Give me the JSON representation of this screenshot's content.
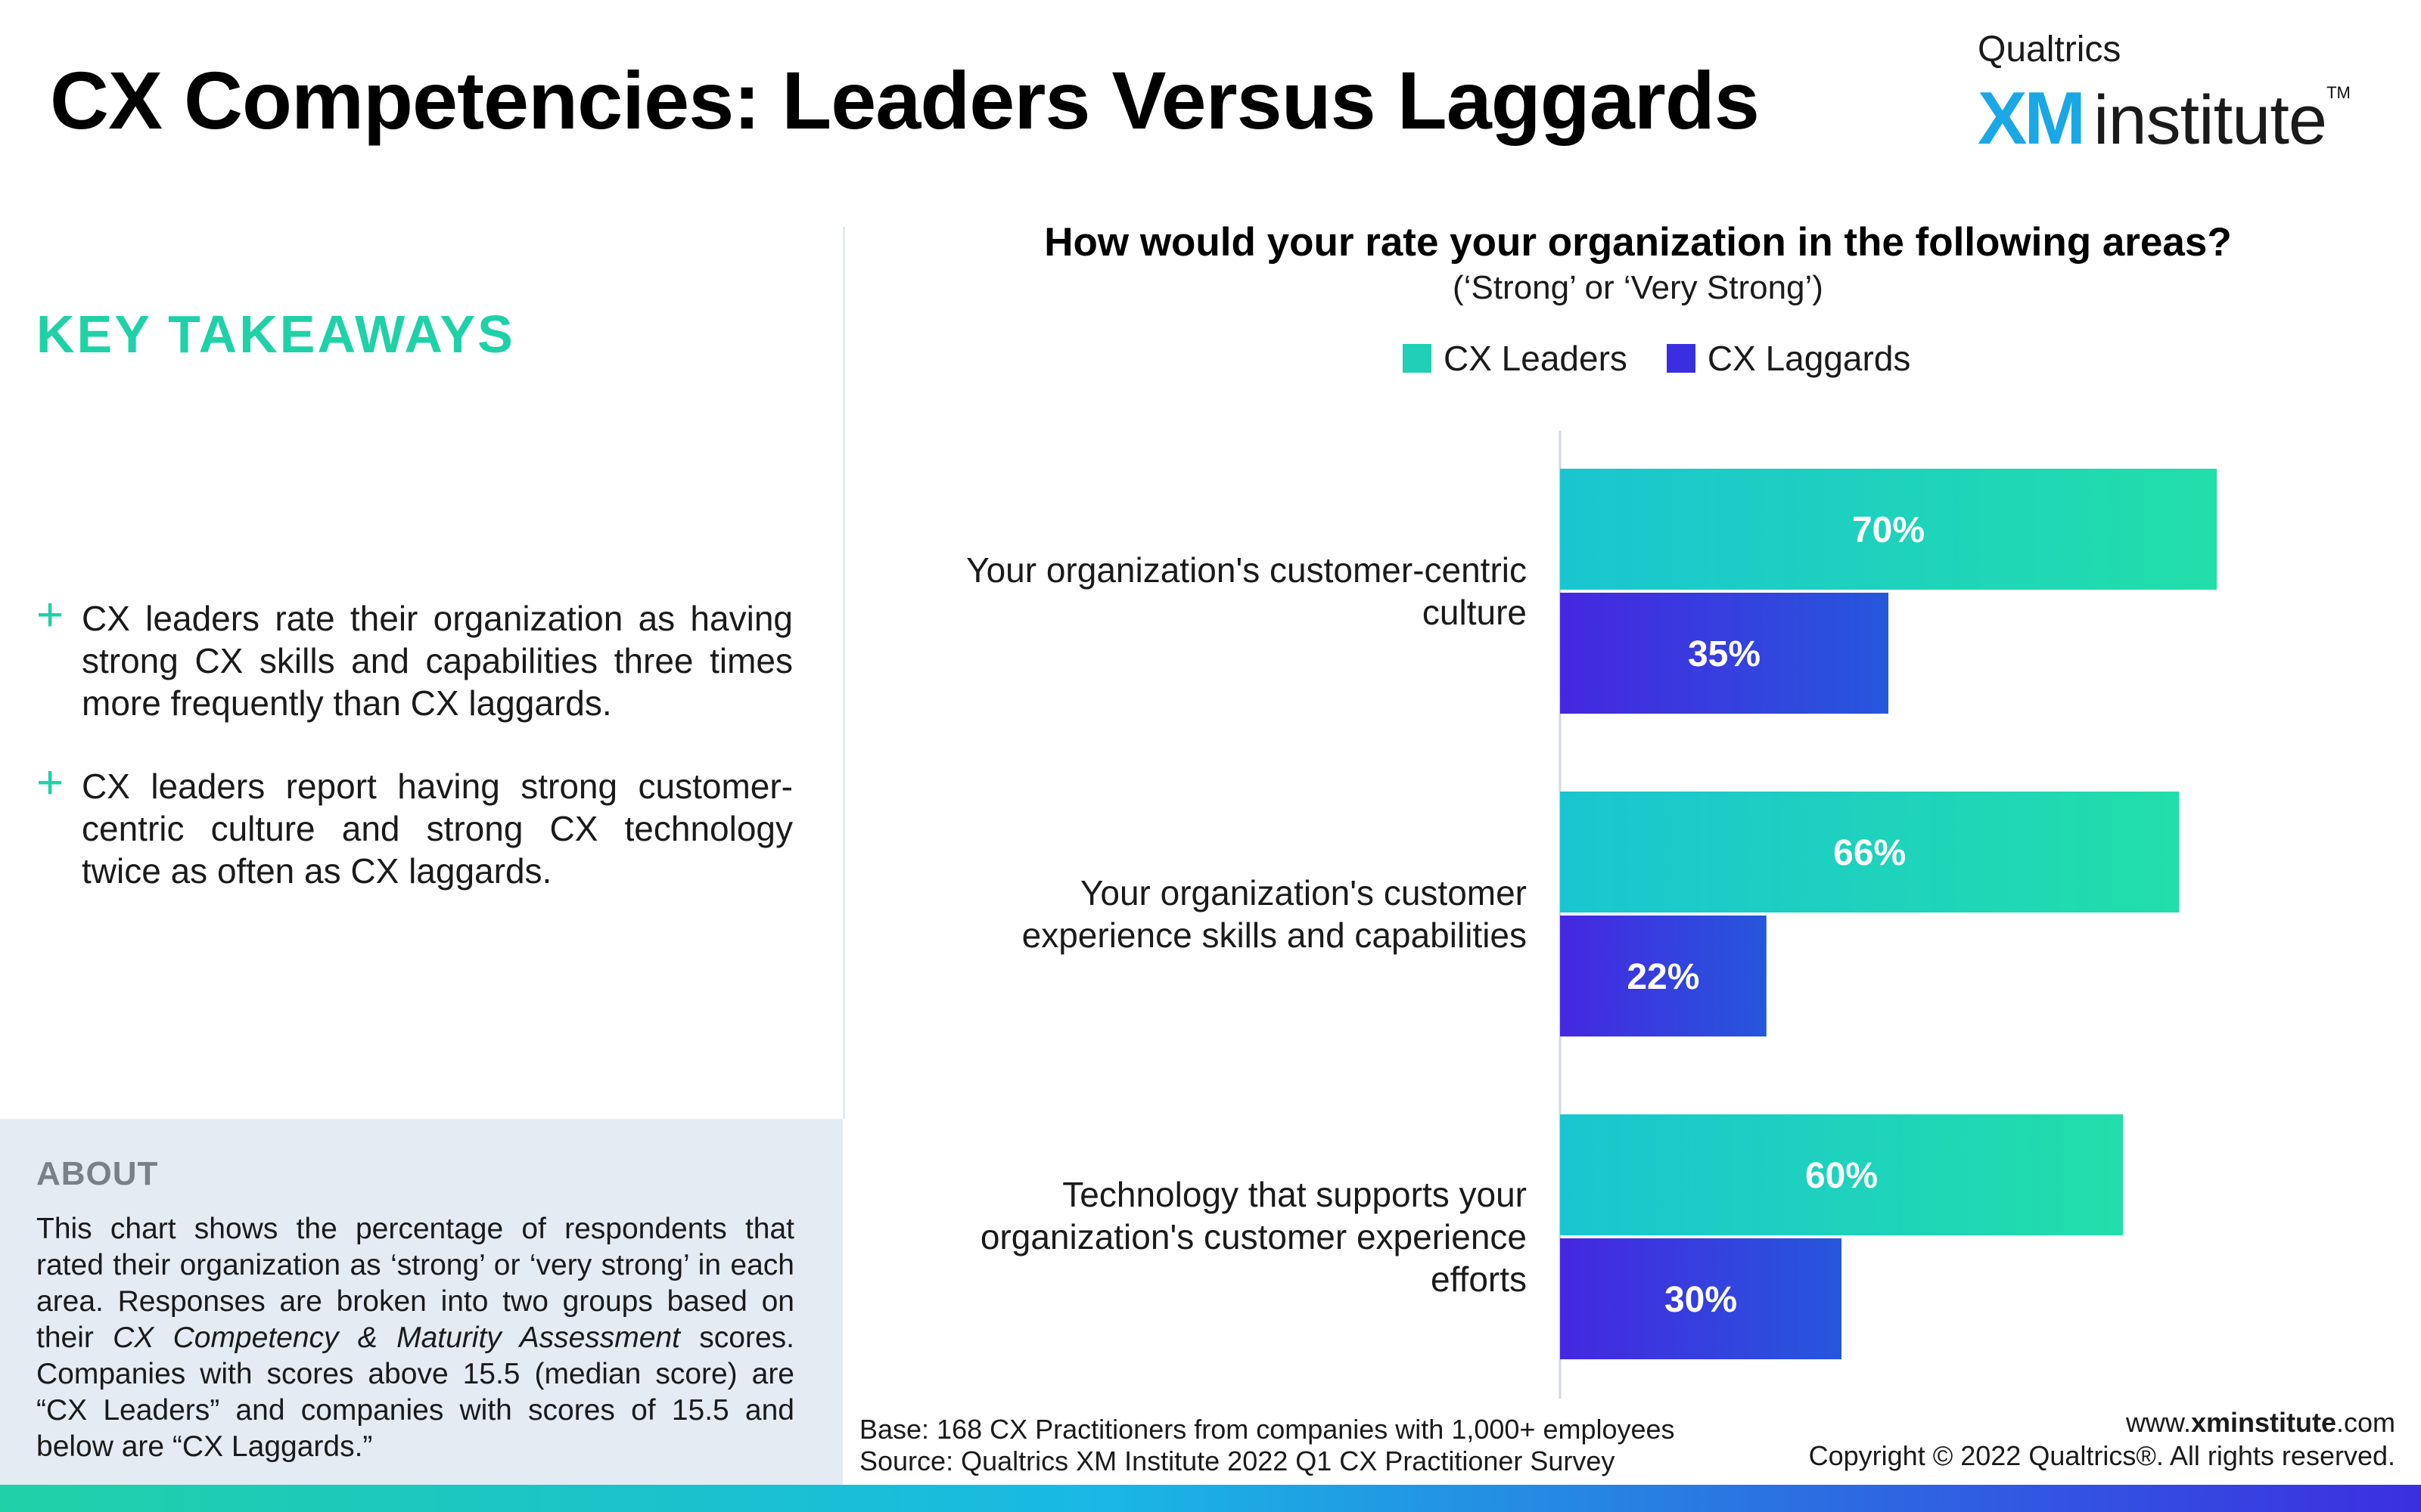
{
  "header": {
    "title": "CX Competencies: Leaders Versus Laggards",
    "logo_top": "Qualtrics",
    "logo_xm": "XM",
    "logo_institute": "institute",
    "logo_tm": "TM"
  },
  "takeaways": {
    "title": "KEY TAKEAWAYS",
    "bullet_symbol": "+",
    "bullets": [
      "CX leaders rate their organization as having strong CX skills and capabilities three times more frequently than CX laggards.",
      "CX leaders report having strong customer-centric culture and strong CX technology twice as often as CX laggards."
    ]
  },
  "about": {
    "title": "ABOUT",
    "text_before": "This chart shows the percentage of respondents that rated their organization as ‘strong’ or ‘very strong’ in each area. Responses are broken into two groups based on their ",
    "text_italic": "CX Competency & Maturity Assessment",
    "text_after": " scores. Companies with scores above 15.5 (median score) are “CX Leaders” and companies with scores of 15.5 and below are “CX Laggards.”"
  },
  "chart_data": {
    "type": "bar",
    "orientation": "horizontal",
    "title": "How would your rate your organization in the following areas?",
    "subtitle": "(‘Strong’ or ‘Very Strong’)",
    "categories": [
      [
        "Your organization's customer-centric",
        "culture"
      ],
      [
        "Your organization's customer",
        "experience skills and capabilities"
      ],
      [
        "Technology that supports your",
        "organization's customer experience",
        "efforts"
      ]
    ],
    "series": [
      {
        "name": "CX Leaders",
        "values": [
          70,
          66,
          60
        ],
        "labels": [
          "70%",
          "66%",
          "60%"
        ],
        "color_start": "#19c6d0",
        "color_end": "#22dea9"
      },
      {
        "name": "CX Laggards",
        "values": [
          35,
          22,
          30
        ],
        "labels": [
          "35%",
          "22%",
          "30%"
        ],
        "color_start": "#4527e0",
        "color_end": "#2657dc"
      }
    ],
    "xlim": [
      0,
      100
    ],
    "grid": false,
    "legend_position": "top-center",
    "data_labels": true
  },
  "footer": {
    "base": "Base: 168 CX Practitioners from companies with 1,000+ employees",
    "source": "Source: Qualtrics XM Institute 2022 Q1 CX Practitioner Survey",
    "url_pre": "www.",
    "url_bold": "xminstitute",
    "url_post": ".com",
    "copyright": "Copyright © 2022 Qualtrics®. All rights reserved."
  }
}
